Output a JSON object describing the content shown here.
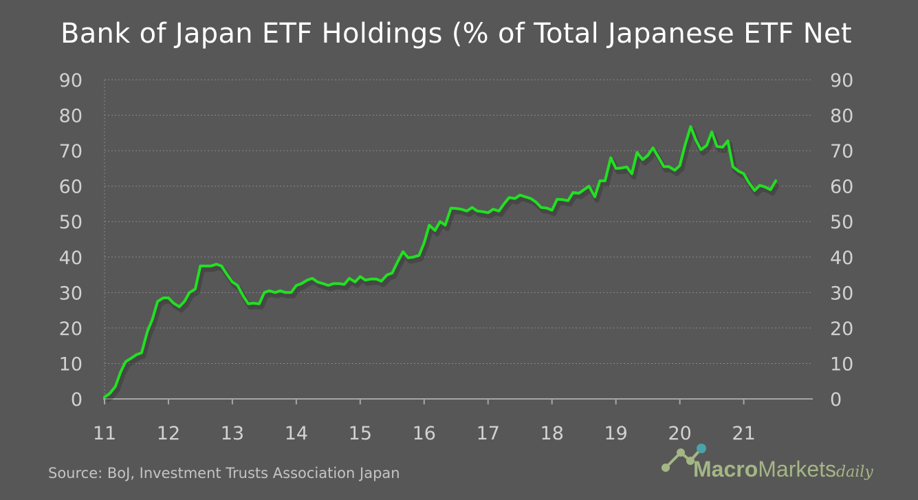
{
  "title": "Bank of Japan ETF Holdings (% of Total Japanese ETF Net",
  "source": "Source: BoJ,  Investment Trusts Association Japan",
  "brand": {
    "part1": "Macro",
    "part2": "Markets",
    "part3": "daily"
  },
  "colors": {
    "background": "#575757",
    "line": "#22e022",
    "grid": "#8a8a8a",
    "axis": "#a6a6a6",
    "text": "#d2d2d2",
    "brand": "#a4b685"
  },
  "chart_data": {
    "type": "line",
    "title": "Bank of Japan ETF Holdings (% of Total Japanese ETF Net",
    "xlabel": "",
    "ylabel": "",
    "x_ticks": [
      "11",
      "12",
      "13",
      "14",
      "15",
      "16",
      "17",
      "18",
      "19",
      "20",
      "21"
    ],
    "y_ticks": [
      "0",
      "10",
      "20",
      "30",
      "40",
      "50",
      "60",
      "70",
      "80",
      "90"
    ],
    "xlim": [
      11,
      22.08
    ],
    "ylim": [
      0,
      90
    ],
    "secondary_y_axis": true,
    "grid": "horizontal dotted",
    "series": [
      {
        "x": [
          11.0,
          11.08,
          11.17,
          11.25,
          11.33,
          11.42,
          11.5,
          11.58,
          11.67,
          11.75,
          11.83,
          11.92,
          12.0,
          12.08,
          12.17,
          12.25,
          12.33,
          12.42,
          12.5,
          12.58,
          12.67,
          12.75,
          12.83,
          12.92,
          13.0,
          13.08,
          13.17,
          13.25,
          13.33,
          13.42,
          13.5,
          13.58,
          13.67,
          13.75,
          13.83,
          13.92,
          14.0,
          14.08,
          14.17,
          14.25,
          14.33,
          14.42,
          14.5,
          14.58,
          14.67,
          14.75,
          14.83,
          14.92,
          15.0,
          15.08,
          15.17,
          15.25,
          15.33,
          15.42,
          15.5,
          15.58,
          15.67,
          15.75,
          15.83,
          15.92,
          16.0,
          16.08,
          16.17,
          16.25,
          16.33,
          16.42,
          16.5,
          16.58,
          16.67,
          16.75,
          16.83,
          16.92,
          17.0,
          17.08,
          17.17,
          17.25,
          17.33,
          17.42,
          17.5,
          17.58,
          17.67,
          17.75,
          17.83,
          17.92,
          18.0,
          18.08,
          18.17,
          18.25,
          18.33,
          18.42,
          18.5,
          18.58,
          18.67,
          18.75,
          18.83,
          18.92,
          19.0,
          19.08,
          19.17,
          19.25,
          19.33,
          19.42,
          19.5,
          19.58,
          19.67,
          19.75,
          19.83,
          19.92,
          20.0,
          20.08,
          20.17,
          20.25,
          20.33,
          20.42,
          20.5,
          20.58,
          20.67,
          20.75,
          20.83,
          20.92,
          21.0,
          21.08,
          21.17,
          21.25,
          21.33,
          21.42,
          21.5
        ],
        "y": [
          0.5,
          1.5,
          3.5,
          7.5,
          10.5,
          11.5,
          12.5,
          13,
          19,
          22.5,
          27.5,
          28.5,
          28.5,
          27,
          26,
          27.5,
          30,
          31,
          37.5,
          37.5,
          37.5,
          38,
          37.5,
          35,
          33,
          32,
          29,
          26.8,
          27,
          26.8,
          30,
          30.5,
          30,
          30.5,
          30,
          30,
          32,
          32.5,
          33.5,
          34,
          33,
          32.5,
          32,
          32.5,
          32.5,
          32.3,
          34,
          33,
          34.5,
          33.5,
          33.8,
          33.8,
          33.2,
          35,
          35.5,
          38.5,
          41.5,
          39.8,
          40,
          40.5,
          44,
          49,
          47.5,
          50,
          49,
          53.8,
          53.7,
          53.5,
          53,
          54,
          53,
          52.8,
          52.5,
          53.5,
          53,
          55,
          56.8,
          56.5,
          57.5,
          57,
          56.5,
          55.5,
          54,
          53.8,
          53.2,
          56.3,
          56.2,
          55.9,
          58.2,
          58,
          59,
          60,
          57,
          61.5,
          61.5,
          68,
          65,
          65.1,
          65.4,
          63.5,
          69.5,
          67.5,
          68.7,
          70.8,
          68,
          65.5,
          65.5,
          64.5,
          65.8,
          71.5,
          76.8,
          73,
          70.3,
          71.5,
          75.3,
          71.2,
          71,
          72.8,
          65.5,
          64.2,
          63.5,
          61,
          58.8,
          60.2,
          59.8,
          59,
          61.5
        ]
      }
    ]
  }
}
